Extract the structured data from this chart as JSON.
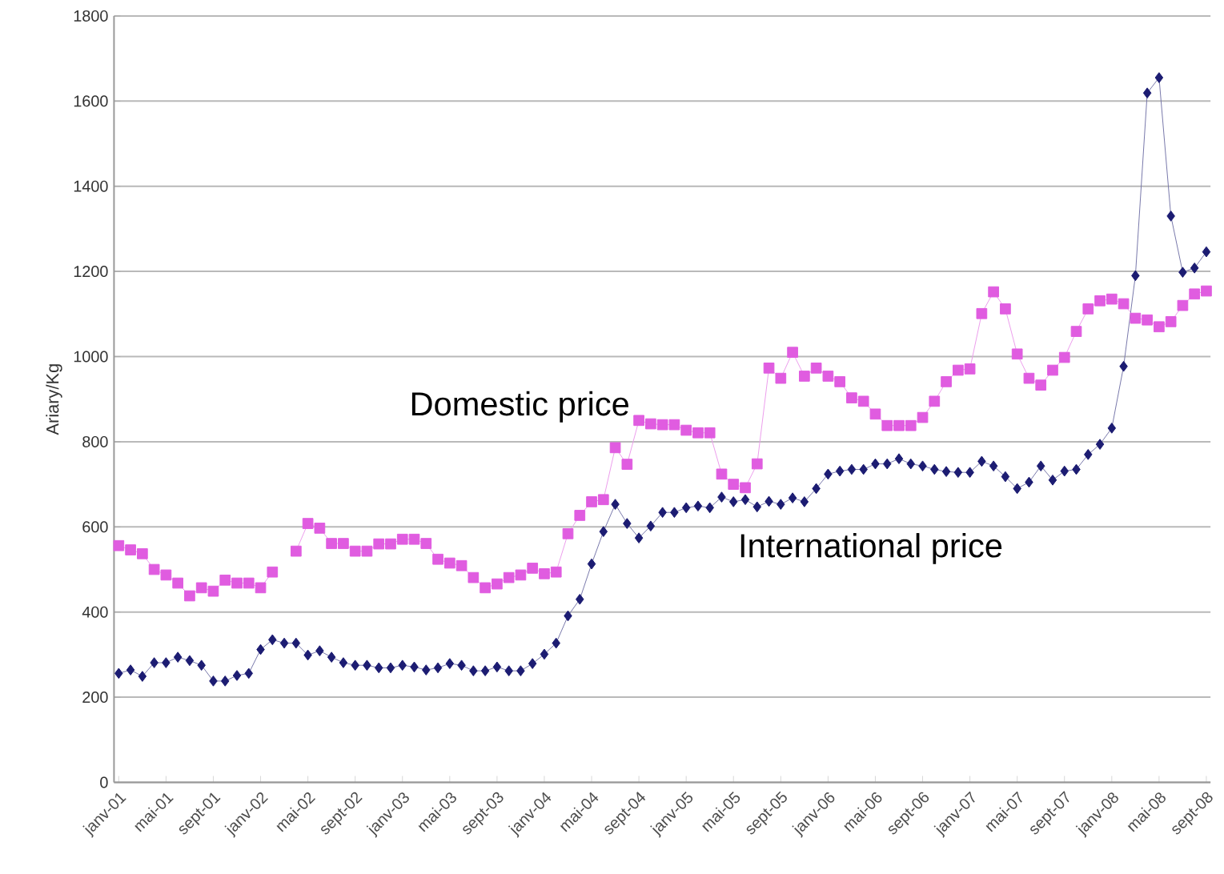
{
  "chart_data": {
    "type": "line",
    "ylabel": "Ariary/Kg",
    "categories": [
      "janv-01",
      null,
      null,
      null,
      "mai-01",
      null,
      null,
      null,
      "sept-01",
      null,
      null,
      null,
      "janv-02",
      null,
      null,
      null,
      "mai-02",
      null,
      null,
      null,
      "sept-02",
      null,
      null,
      null,
      "janv-03",
      null,
      null,
      null,
      "mai-03",
      null,
      null,
      null,
      "sept-03",
      null,
      null,
      null,
      "janv-04",
      null,
      null,
      null,
      "mai-04",
      null,
      null,
      null,
      "sept-04",
      null,
      null,
      null,
      "janv-05",
      null,
      null,
      null,
      "mai-05",
      null,
      null,
      null,
      "sept-05",
      null,
      null,
      null,
      "janv-06",
      null,
      null,
      null,
      "mai-06",
      null,
      null,
      null,
      "sept-06",
      null,
      null,
      null,
      "janv-07",
      null,
      null,
      null,
      "mai-07",
      null,
      null,
      null,
      "sept-07",
      null,
      null,
      null,
      "janv-08",
      null,
      null,
      null,
      "mai-08",
      null,
      null,
      null,
      "sept-08"
    ],
    "series": [
      {
        "name": "Domestic price",
        "color": "#e05ce0",
        "marker": "square",
        "values": [
          556,
          546,
          537,
          500,
          487,
          468,
          438,
          457,
          449,
          475,
          468,
          468,
          457,
          494,
          null,
          543,
          608,
          597,
          561,
          561,
          543,
          543,
          560,
          560,
          571,
          571,
          561,
          524,
          515,
          509,
          481,
          457,
          466,
          481,
          487,
          503,
          490,
          494,
          584,
          627,
          659,
          664,
          786,
          747,
          850,
          842,
          840,
          840,
          827,
          821,
          821,
          724,
          700,
          692,
          748,
          973,
          949,
          1010,
          954,
          973,
          954,
          941,
          903,
          895,
          865,
          838,
          838,
          838,
          857,
          895,
          941,
          968,
          971,
          1101,
          1152,
          1112,
          1006,
          949,
          933,
          968,
          998,
          1059,
          1112,
          1131,
          1135,
          1124,
          1090,
          1086,
          1070,
          1082,
          1120,
          1147,
          1154
        ]
      },
      {
        "name": "International price",
        "color": "#1c1c72",
        "marker": "diamond",
        "values": [
          256,
          264,
          249,
          281,
          281,
          294,
          286,
          275,
          238,
          238,
          251,
          256,
          312,
          335,
          327,
          327,
          299,
          309,
          294,
          281,
          275,
          275,
          269,
          269,
          275,
          271,
          264,
          269,
          279,
          275,
          262,
          262,
          271,
          262,
          262,
          279,
          301,
          327,
          391,
          430,
          513,
          589,
          653,
          608,
          574,
          602,
          634,
          634,
          645,
          649,
          645,
          670,
          659,
          664,
          647,
          660,
          653,
          668,
          659,
          690,
          724,
          731,
          735,
          735,
          748,
          748,
          760,
          748,
          743,
          735,
          730,
          728,
          728,
          754,
          743,
          718,
          690,
          705,
          743,
          710,
          731,
          735,
          770,
          794,
          832,
          977,
          1190,
          1619,
          1655,
          1330,
          1198,
          1208,
          1246
        ]
      }
    ],
    "ylim": [
      0,
      1800
    ],
    "yticks": [
      0,
      200,
      400,
      600,
      800,
      1000,
      1200,
      1400,
      1600,
      1800
    ],
    "grid": "y"
  }
}
